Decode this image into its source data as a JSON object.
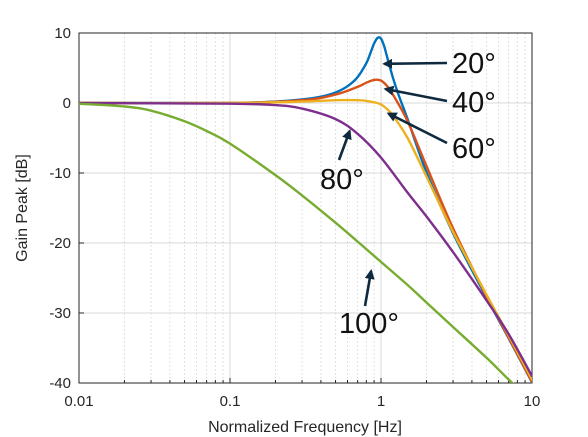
{
  "chart_data": {
    "type": "line",
    "title": "",
    "xlabel": "Normalized Frequency [Hz]",
    "ylabel": "Gain Peak [dB]",
    "xscale": "log",
    "xlim": [
      0.01,
      10
    ],
    "ylim": [
      -40,
      10
    ],
    "xticks": [
      0.01,
      0.1,
      1,
      10
    ],
    "xtick_labels": [
      "0.01",
      "0.1",
      "1",
      "10"
    ],
    "yticks": [
      10,
      0,
      -10,
      -20,
      -30,
      -40
    ],
    "ytick_labels": [
      "10",
      "0",
      "-10",
      "-20",
      "-30",
      "-40"
    ],
    "grid": true,
    "legend": "none",
    "colors": {
      "axis": "#262626",
      "grid": "#d9d9d9",
      "annotation": "#0f2a3f"
    },
    "series": [
      {
        "color": "#0072bd",
        "x": [
          0.01,
          0.05,
          0.1,
          0.2,
          0.3,
          0.4,
          0.5,
          0.6,
          0.7,
          0.8,
          0.85,
          0.9,
          0.95,
          1.0,
          1.05,
          1.1,
          1.2,
          1.3,
          1.5,
          2,
          3,
          5,
          7,
          10
        ],
        "y": [
          0.0,
          0.0,
          0.0,
          0.2,
          0.5,
          0.9,
          1.5,
          2.4,
          3.7,
          5.7,
          7.1,
          8.5,
          9.3,
          9.2,
          8.1,
          6.5,
          3.6,
          1.3,
          -2.3,
          -9.9,
          -18.6,
          -27.8,
          -33.6,
          -39.9
        ]
      },
      {
        "color": "#d95319",
        "x": [
          0.01,
          0.1,
          0.3,
          0.5,
          0.7,
          0.8,
          0.9,
          1.0,
          1.1,
          1.2,
          1.5,
          2,
          3,
          5,
          7,
          10
        ],
        "y": [
          0.0,
          0.0,
          0.4,
          1.2,
          2.3,
          2.9,
          3.3,
          3.2,
          2.4,
          1.2,
          -2.6,
          -9.0,
          -17.9,
          -27.6,
          -33.5,
          -39.8
        ]
      },
      {
        "color": "#edb120",
        "x": [
          0.01,
          0.1,
          0.3,
          0.5,
          0.7,
          0.8,
          0.9,
          1.0,
          1.1,
          1.2,
          1.5,
          2,
          3,
          5,
          7,
          10
        ],
        "y": [
          0.0,
          0.0,
          0.2,
          0.4,
          0.4,
          0.3,
          0.1,
          -0.2,
          -0.9,
          -1.8,
          -5.0,
          -10.5,
          -18.4,
          -27.4,
          -33.2,
          -39.5
        ]
      },
      {
        "color": "#7e2f8e",
        "x": [
          0.01,
          0.1,
          0.2,
          0.3,
          0.5,
          0.7,
          1.0,
          1.5,
          2,
          3,
          5,
          7,
          10
        ],
        "y": [
          0.0,
          -0.1,
          -0.3,
          -0.8,
          -2.3,
          -4.4,
          -7.8,
          -12.8,
          -16.2,
          -21.3,
          -28.2,
          -33.0,
          -39.0
        ]
      },
      {
        "color": "#77ac30",
        "x": [
          0.01,
          0.02,
          0.03,
          0.05,
          0.07,
          0.1,
          0.2,
          0.3,
          0.5,
          0.7,
          1.0,
          1.5,
          2,
          3,
          5,
          7,
          10
        ],
        "y": [
          -0.1,
          -0.5,
          -1.1,
          -2.6,
          -4.0,
          -5.8,
          -10.3,
          -13.2,
          -17.1,
          -19.8,
          -22.7,
          -26.0,
          -28.5,
          -32.0,
          -36.4,
          -39.5,
          -42.6
        ]
      }
    ],
    "annotations": [
      {
        "text": "20°",
        "arrow_to": [
          1.05,
          5.6
        ]
      },
      {
        "text": "40°",
        "arrow_to": [
          1.07,
          2.0
        ]
      },
      {
        "text": "60°",
        "arrow_to": [
          1.12,
          -1.5
        ]
      },
      {
        "text": "80°",
        "arrow_to": [
          0.62,
          -4.0
        ]
      },
      {
        "text": "100°",
        "arrow_to": [
          0.86,
          -24.0
        ]
      }
    ]
  }
}
